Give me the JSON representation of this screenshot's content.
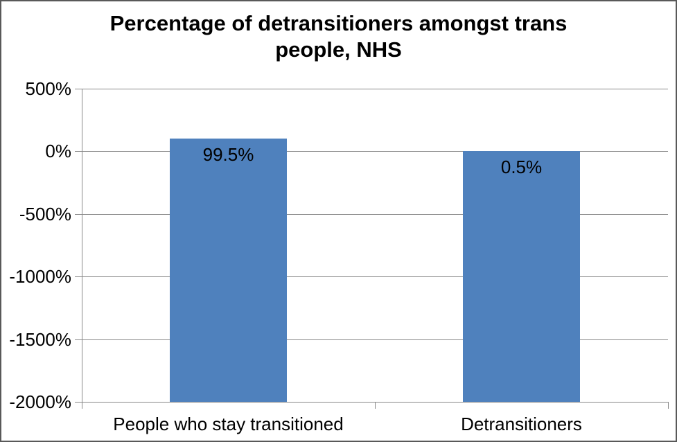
{
  "chart_data": {
    "type": "bar",
    "title": "Percentage of detransitioners amongst trans people, NHS",
    "title_lines": [
      "Percentage of detransitioners amongst trans",
      "people, NHS"
    ],
    "categories": [
      "People who stay transitioned",
      "Detransitioners"
    ],
    "values": [
      99.5,
      0.5
    ],
    "data_labels": [
      "99.5%",
      "0.5%"
    ],
    "series": [
      {
        "name": "Percentage",
        "values": [
          99.5,
          0.5
        ]
      }
    ],
    "xlabel": "",
    "ylabel": "",
    "ylim": [
      -2000,
      500
    ],
    "bars_baseline": -2000,
    "y_ticks": [
      {
        "label": "500%",
        "value": 500
      },
      {
        "label": "0%",
        "value": 0
      },
      {
        "label": "-500%",
        "value": -500
      },
      {
        "label": "-1000%",
        "value": -1000
      },
      {
        "label": "-1500%",
        "value": -1500
      },
      {
        "label": "-2000%",
        "value": -2000
      }
    ],
    "grid": "horizontal",
    "legend": "none",
    "data_label_position": "inside-end",
    "colors": {
      "bar": "#4F81BD",
      "gridline": "#878787",
      "axis": "#878787",
      "text": "#000000",
      "chart_border": "#595959"
    }
  }
}
